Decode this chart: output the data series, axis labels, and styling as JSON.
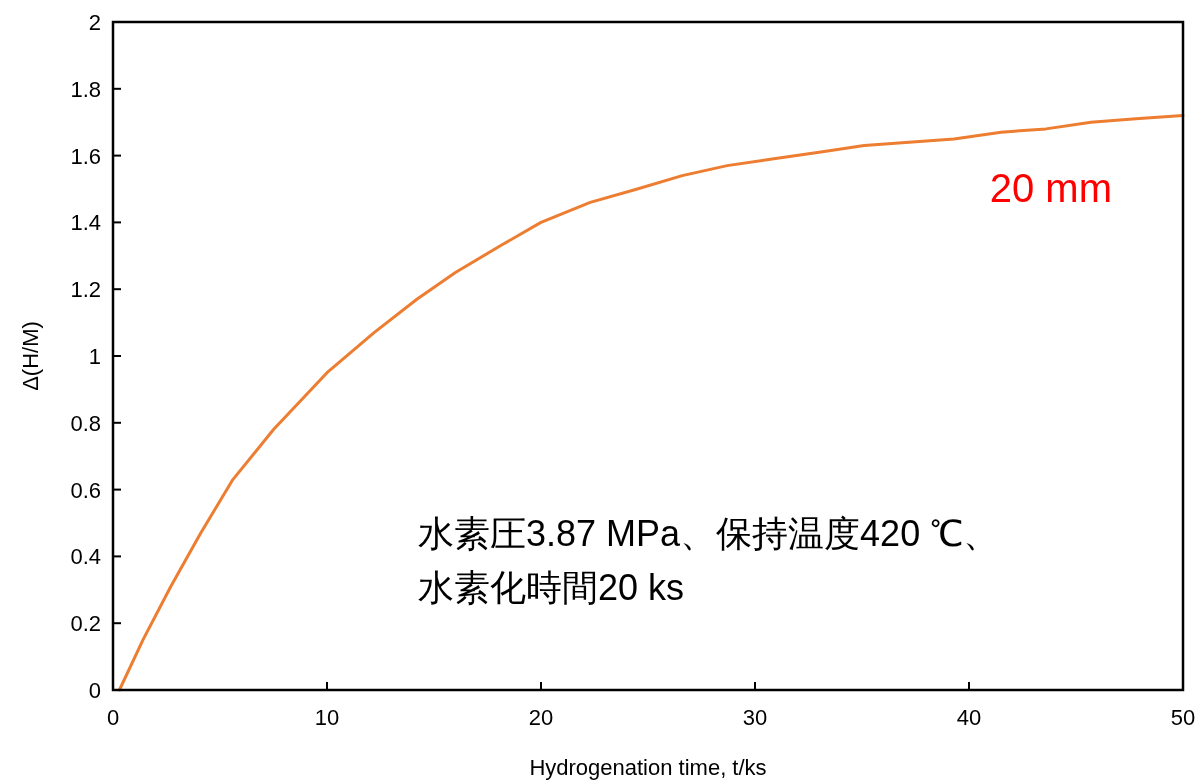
{
  "chart_data": {
    "type": "line",
    "xlabel": "Hydrogenation time, t/ks",
    "ylabel": "Δ(H/M)",
    "x": [
      0.3,
      1.4,
      2.7,
      4.1,
      5.6,
      7.5,
      10,
      12.2,
      14.2,
      16,
      18.1,
      20,
      22.3,
      24.5,
      26.6,
      28.7,
      30.8,
      33,
      35.1,
      37.2,
      39.3,
      41.5,
      43.6,
      45.7,
      47.8,
      50
    ],
    "series": [
      {
        "color": "#ed7d31",
        "values": [
          0,
          0.15,
          0.31,
          0.47,
          0.63,
          0.78,
          0.95,
          1.07,
          1.17,
          1.25,
          1.33,
          1.4,
          1.46,
          1.5,
          1.54,
          1.57,
          1.59,
          1.61,
          1.63,
          1.64,
          1.65,
          1.67,
          1.68,
          1.7,
          1.71,
          1.72
        ]
      }
    ],
    "xlim": [
      0,
      50
    ],
    "ylim": [
      0,
      2
    ],
    "xticks": [
      0,
      10,
      20,
      30,
      40,
      50
    ],
    "yticks": [
      0,
      0.2,
      0.4,
      0.6,
      0.8,
      1,
      1.2,
      1.4,
      1.6,
      1.8,
      2
    ],
    "annotations": [
      "20 mm",
      "水素圧3.87 MPa、保持温度420 ℃、",
      "水素化時間20 ks"
    ],
    "grid": false,
    "marker": "none",
    "line_style": "solid"
  }
}
